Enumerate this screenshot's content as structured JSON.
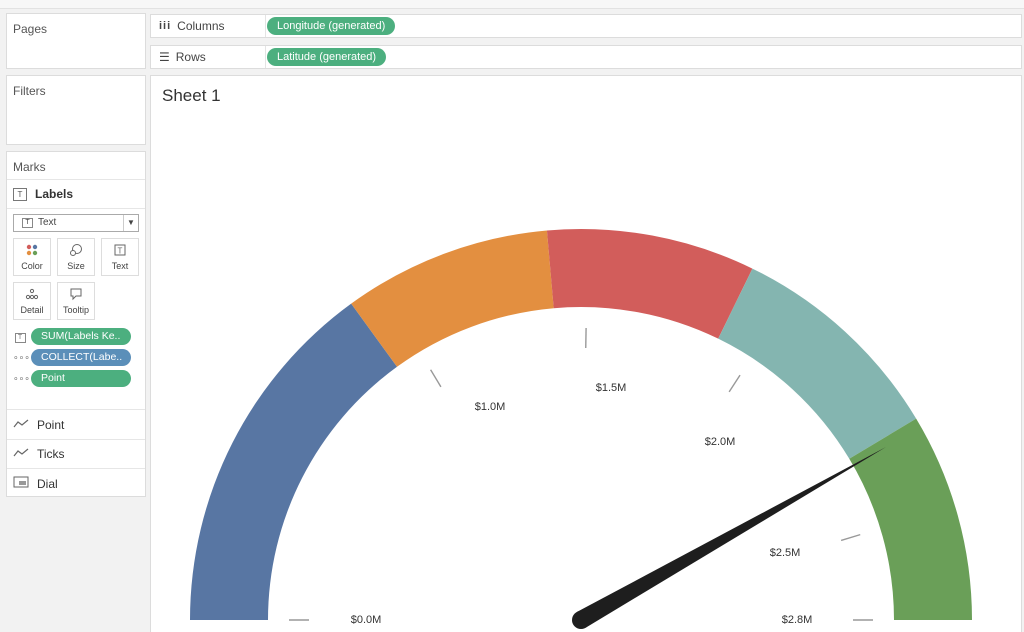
{
  "left": {
    "pages_title": "Pages",
    "filters_title": "Filters",
    "marks": {
      "title": "Marks",
      "layer_label": "Labels",
      "mark_type": "Text",
      "buttons": [
        {
          "label": "Color",
          "icon": "color-dots-icon"
        },
        {
          "label": "Size",
          "icon": "size-icon"
        },
        {
          "label": "Text",
          "icon": "text-icon"
        },
        {
          "label": "Detail",
          "icon": "detail-icon"
        },
        {
          "label": "Tooltip",
          "icon": "tooltip-icon"
        }
      ],
      "fields": [
        {
          "label": "SUM(Labels Ke..",
          "icon": "text-icon",
          "color": "#4caf7f"
        },
        {
          "label": "COLLECT(Labe..",
          "icon": "detail-icon",
          "color": "#5b8fb9"
        },
        {
          "label": "Point",
          "icon": "detail-icon",
          "color": "#4caf7f"
        }
      ],
      "layers": [
        {
          "label": "Point",
          "icon": "line-icon"
        },
        {
          "label": "Ticks",
          "icon": "line-icon"
        },
        {
          "label": "Dial",
          "icon": "polygon-icon"
        }
      ]
    }
  },
  "shelves": {
    "columns_label": "Columns",
    "columns_pill": "Longitude (generated)",
    "rows_label": "Rows",
    "rows_pill": "Latitude (generated)"
  },
  "sheet_title": "Sheet 1",
  "gauge": {
    "bands": [
      {
        "color": "#5876a3"
      },
      {
        "color": "#e38f40"
      },
      {
        "color": "#d25d5b"
      },
      {
        "color": "#84b5b0"
      },
      {
        "color": "#6a9f58"
      }
    ],
    "labels": [
      "$0.0M",
      "$1.0M",
      "$1.5M",
      "$2.0M",
      "$2.5M",
      "$2.8M"
    ],
    "needle_color": "#1e1e1e"
  }
}
